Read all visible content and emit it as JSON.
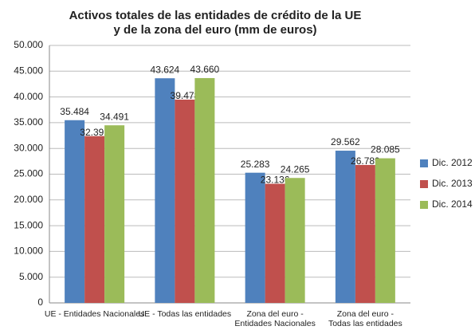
{
  "chart_data": {
    "type": "bar",
    "title": [
      "Activos totales de las entidades de crédito de la UE",
      "y de la zona del euro (mm de euros)"
    ],
    "categories": [
      [
        "UE - Entidades Nacionales"
      ],
      [
        "UE - Todas las entidades"
      ],
      [
        "Zona del euro -",
        "Entidades Nacionales"
      ],
      [
        "Zona del euro -",
        "Todas las entidades"
      ]
    ],
    "series": [
      {
        "name": "Dic. 2012",
        "color": "#4f81bd",
        "values": [
          35484,
          43624,
          25283,
          29562
        ],
        "value_labels": [
          "35.484",
          "43.624",
          "25.283",
          "29.562"
        ]
      },
      {
        "name": "Dic. 2013",
        "color": "#c0504d",
        "values": [
          32391,
          39478,
          23136,
          26789
        ],
        "value_labels": [
          "32.391",
          "39.478",
          "23.136",
          "26.789"
        ]
      },
      {
        "name": "Dic. 2014",
        "color": "#9bbb59",
        "values": [
          34491,
          43660,
          24265,
          28085
        ],
        "value_labels": [
          "34.491",
          "43.660",
          "24.265",
          "28.085"
        ]
      }
    ],
    "ylim": [
      0,
      50000
    ],
    "yticks": [
      {
        "value": 0,
        "label": "0"
      },
      {
        "value": 5000,
        "label": "5.000"
      },
      {
        "value": 10000,
        "label": "10.000"
      },
      {
        "value": 15000,
        "label": "15.000"
      },
      {
        "value": 20000,
        "label": "20.000"
      },
      {
        "value": 25000,
        "label": "25.000"
      },
      {
        "value": 30000,
        "label": "30.000"
      },
      {
        "value": 35000,
        "label": "35.000"
      },
      {
        "value": 40000,
        "label": "40.000"
      },
      {
        "value": 45000,
        "label": "45.000"
      },
      {
        "value": 50000,
        "label": "50.000"
      }
    ],
    "grid": true,
    "legend": "right"
  }
}
